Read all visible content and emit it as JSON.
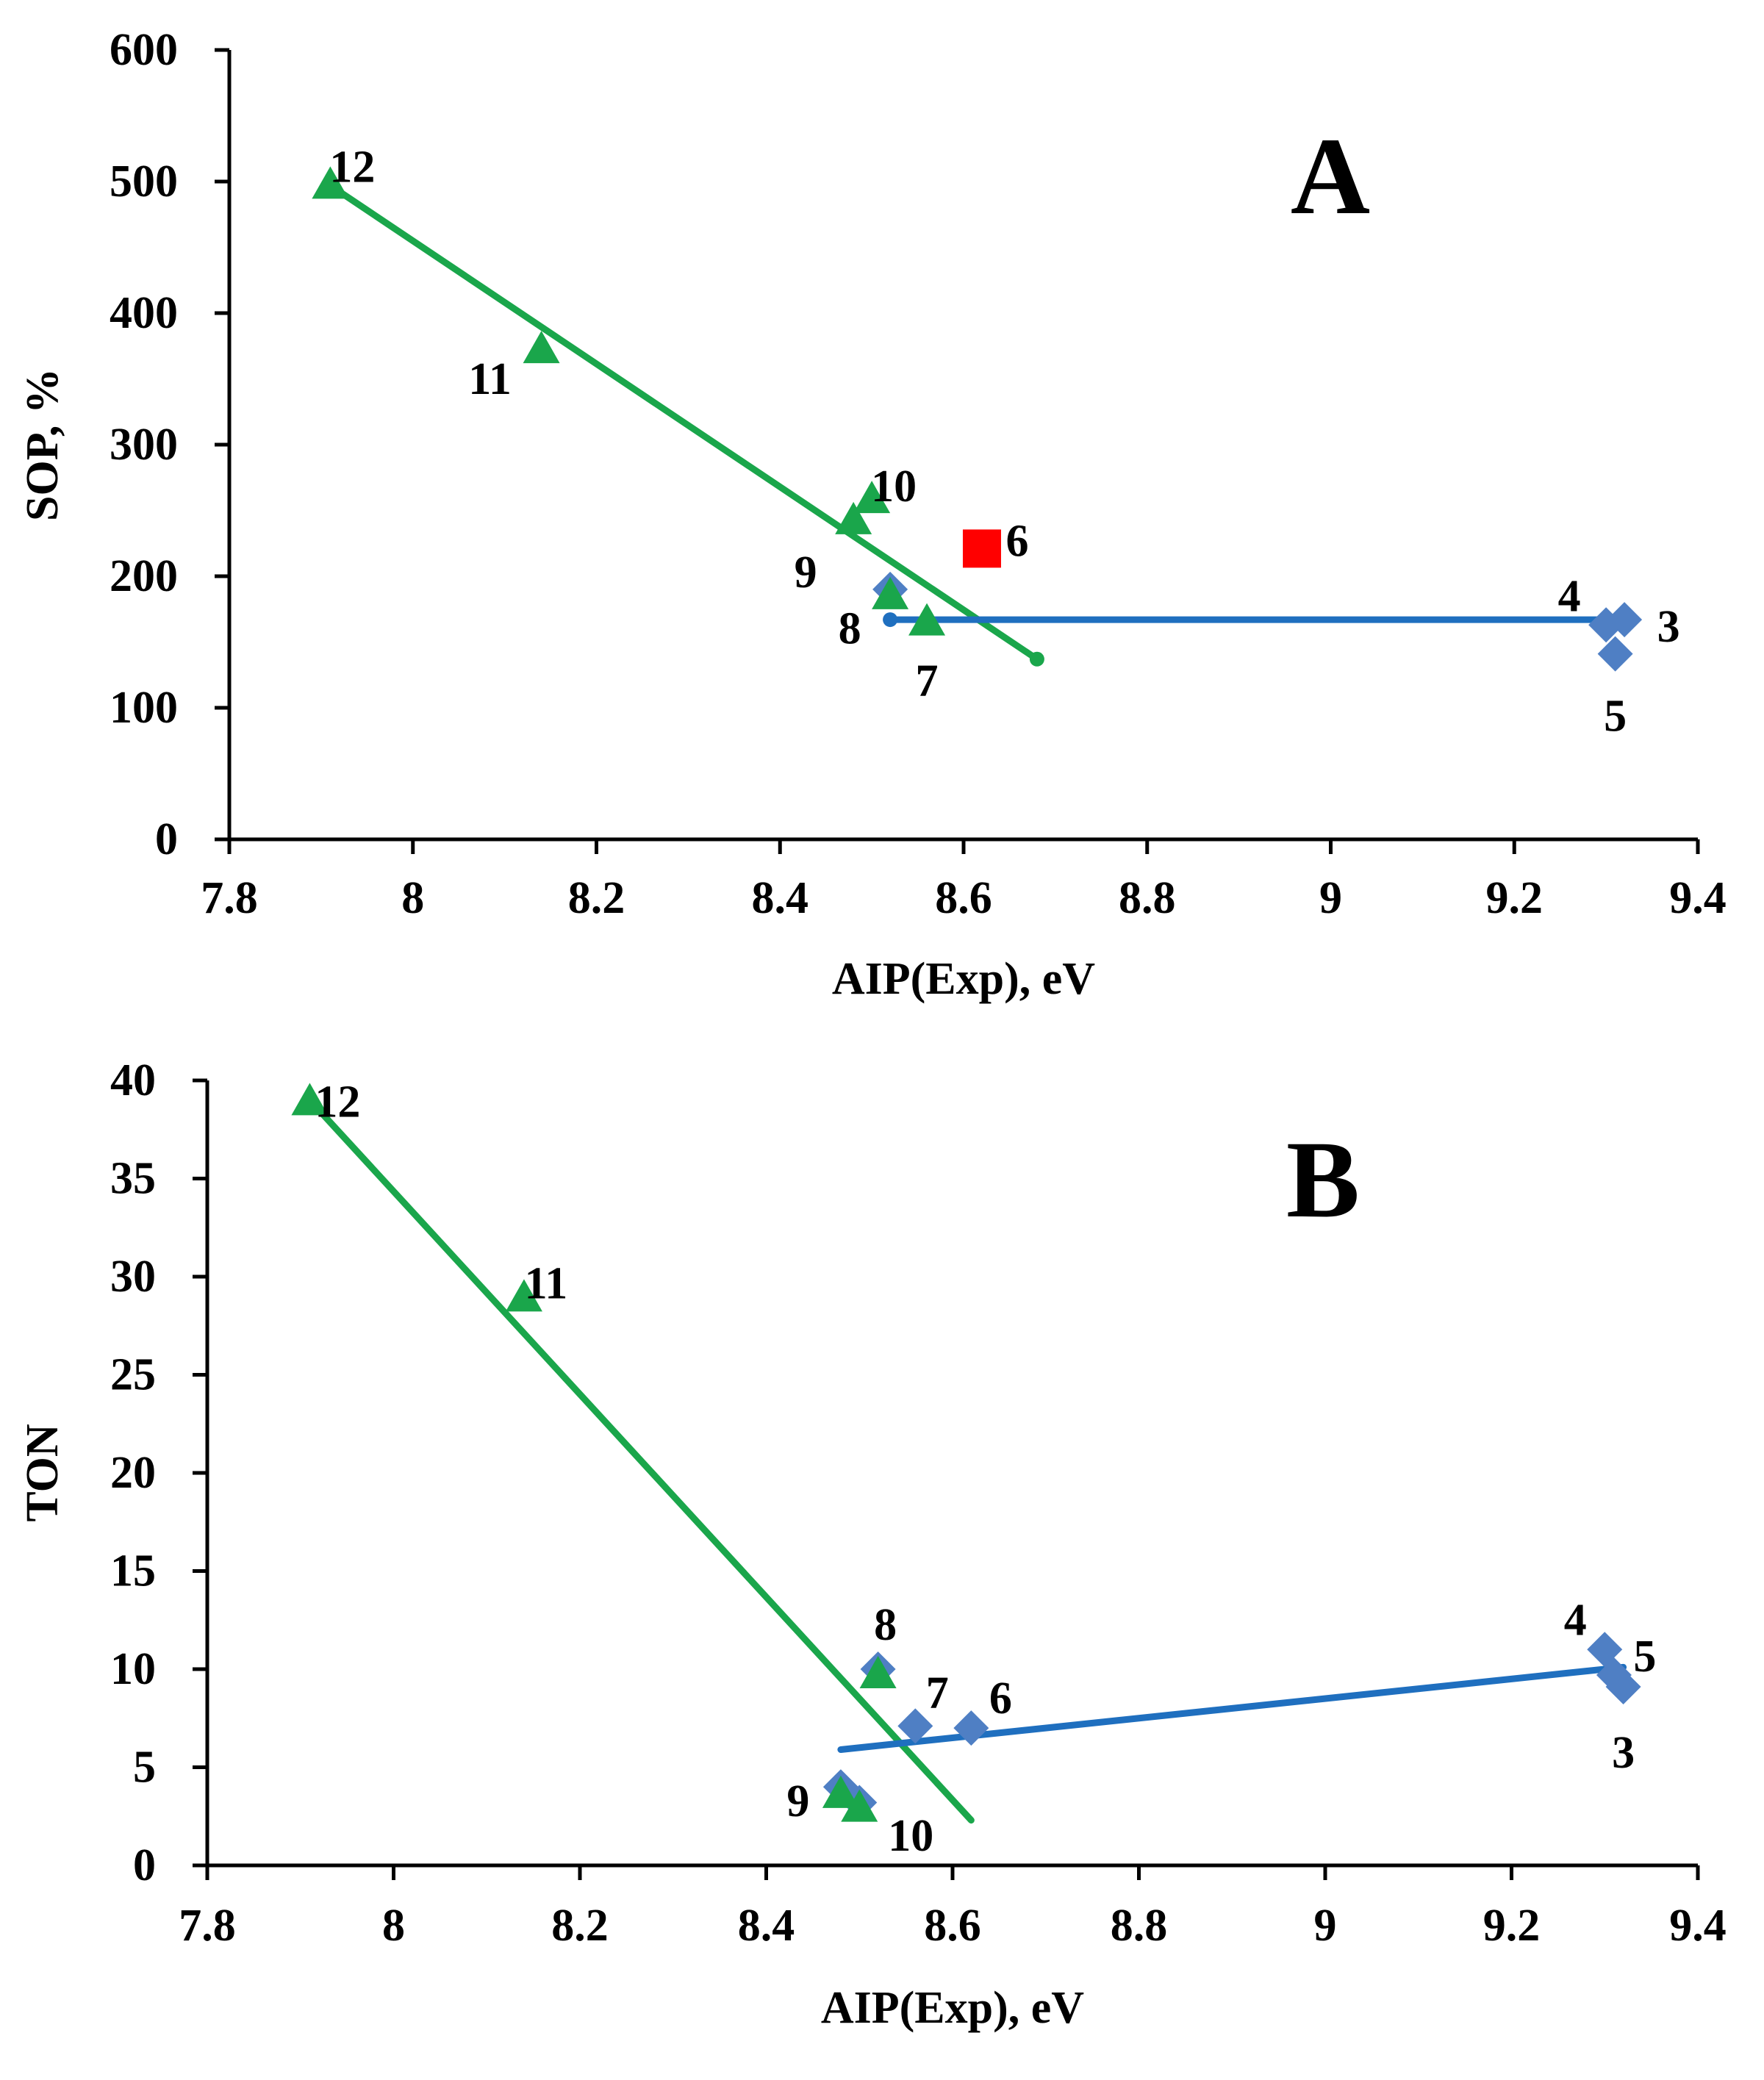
{
  "colors": {
    "green": "#1aa64b",
    "blue": "#1f6fbf",
    "diamond": "#4f7fc4",
    "red": "#ff0000",
    "axis": "#000000"
  },
  "chart_data": [
    {
      "type": "scatter",
      "panel": "A",
      "xlabel": "AIP(Exp), eV",
      "ylabel": "SOP, %",
      "xlim": [
        7.8,
        9.4
      ],
      "ylim": [
        0,
        600
      ],
      "xticks": [
        7.8,
        8,
        8.2,
        8.4,
        8.6,
        8.8,
        9,
        9.2,
        9.4
      ],
      "xtick_labels": [
        "7.8",
        "8",
        "8.2",
        "8.4",
        "8.6",
        "8.8",
        "9",
        "9.2",
        "9.4"
      ],
      "yticks": [
        0,
        100,
        200,
        300,
        400,
        500,
        600
      ],
      "ytick_labels": [
        "0",
        "100",
        "200",
        "300",
        "400",
        "500",
        "600"
      ],
      "series": [
        {
          "name": "diamonds",
          "marker": "diamond",
          "color": "diamond",
          "points": [
            {
              "label": "3",
              "x": 9.32,
              "y": 167
            },
            {
              "label": "4",
              "x": 9.3,
              "y": 163
            },
            {
              "label": "5",
              "x": 9.31,
              "y": 141
            },
            {
              "label": "8",
              "x": 8.52,
              "y": 190
            }
          ]
        },
        {
          "name": "triangles",
          "marker": "triangle",
          "color": "green",
          "points": [
            {
              "label": "7",
              "x": 8.56,
              "y": 165
            },
            {
              "label": "8",
              "x": 8.52,
              "y": 185
            },
            {
              "label": "9",
              "x": 8.48,
              "y": 242
            },
            {
              "label": "10",
              "x": 8.5,
              "y": 258
            },
            {
              "label": "11",
              "x": 8.14,
              "y": 372
            },
            {
              "label": "12",
              "x": 7.91,
              "y": 497
            }
          ]
        },
        {
          "name": "square",
          "marker": "square",
          "color": "red",
          "points": [
            {
              "label": "6",
              "x": 8.62,
              "y": 221
            }
          ]
        }
      ],
      "trendlines": [
        {
          "color": "green",
          "x": [
            7.91,
            8.68
          ],
          "y": [
            497,
            137
          ]
        },
        {
          "color": "blue",
          "x": [
            8.52,
            9.32
          ],
          "y": [
            167,
            167
          ]
        }
      ]
    },
    {
      "type": "scatter",
      "panel": "B",
      "xlabel": "AIP(Exp), eV",
      "ylabel": "TON",
      "xlim": [
        7.8,
        9.4
      ],
      "ylim": [
        0,
        40
      ],
      "xticks": [
        7.8,
        8,
        8.2,
        8.4,
        8.6,
        8.8,
        9,
        9.2,
        9.4
      ],
      "xtick_labels": [
        "7.8",
        "8",
        "8.2",
        "8.4",
        "8.6",
        "8.8",
        "9",
        "9.2",
        "9.4"
      ],
      "yticks": [
        0,
        5,
        10,
        15,
        20,
        25,
        30,
        35,
        40
      ],
      "ytick_labels": [
        "0",
        "5",
        "10",
        "15",
        "20",
        "25",
        "30",
        "35",
        "40"
      ],
      "series": [
        {
          "name": "diamonds",
          "marker": "diamond",
          "color": "diamond",
          "points": [
            {
              "label": "3",
              "x": 9.32,
              "y": 9.1
            },
            {
              "label": "4",
              "x": 9.3,
              "y": 11.0
            },
            {
              "label": "5",
              "x": 9.31,
              "y": 9.7
            },
            {
              "label": "6",
              "x": 8.62,
              "y": 7.0
            },
            {
              "label": "7",
              "x": 8.56,
              "y": 7.1
            },
            {
              "label": "8",
              "x": 8.52,
              "y": 10.0
            },
            {
              "label": "9",
              "x": 8.48,
              "y": 4.0
            },
            {
              "label": "10",
              "x": 8.5,
              "y": 3.2
            }
          ]
        },
        {
          "name": "triangles",
          "marker": "triangle",
          "color": "green",
          "points": [
            {
              "label": "8",
              "x": 8.52,
              "y": 9.7
            },
            {
              "label": "9",
              "x": 8.48,
              "y": 3.6
            },
            {
              "label": "10",
              "x": 8.5,
              "y": 2.9
            },
            {
              "label": "11",
              "x": 8.14,
              "y": 28.9
            },
            {
              "label": "12",
              "x": 7.91,
              "y": 38.9
            }
          ]
        }
      ],
      "trendlines": [
        {
          "color": "green",
          "x": [
            7.91,
            8.62
          ],
          "y": [
            39.0,
            2.3
          ]
        },
        {
          "color": "blue",
          "x": [
            8.48,
            9.32
          ],
          "y": [
            5.9,
            10.1
          ]
        }
      ]
    }
  ],
  "annotations": [
    {
      "letter": "A",
      "labels": [
        {
          "text": "12",
          "x": 7.91,
          "y": 497
        },
        {
          "text": "11",
          "x": 8.14,
          "y": 372
        },
        {
          "text": "10",
          "x": 8.5,
          "y": 258
        },
        {
          "text": "9",
          "x": 8.48,
          "y": 242
        },
        {
          "text": "8",
          "x": 8.52,
          "y": 188
        },
        {
          "text": "7",
          "x": 8.56,
          "y": 165
        },
        {
          "text": "6",
          "x": 8.62,
          "y": 221
        },
        {
          "text": "4",
          "x": 9.3,
          "y": 165
        },
        {
          "text": "3",
          "x": 9.32,
          "y": 167
        },
        {
          "text": "5",
          "x": 9.31,
          "y": 141
        }
      ]
    },
    {
      "letter": "B",
      "labels": [
        {
          "text": "12",
          "x": 7.91,
          "y": 38.9
        },
        {
          "text": "11",
          "x": 8.14,
          "y": 28.9
        },
        {
          "text": "8",
          "x": 8.52,
          "y": 10.0
        },
        {
          "text": "7",
          "x": 8.56,
          "y": 7.1
        },
        {
          "text": "6",
          "x": 8.62,
          "y": 7.0
        },
        {
          "text": "9",
          "x": 8.48,
          "y": 4.0
        },
        {
          "text": "10",
          "x": 8.5,
          "y": 3.0
        },
        {
          "text": "4",
          "x": 9.3,
          "y": 11.0
        },
        {
          "text": "5",
          "x": 9.31,
          "y": 9.7
        },
        {
          "text": "3",
          "x": 9.32,
          "y": 9.1
        }
      ]
    }
  ]
}
